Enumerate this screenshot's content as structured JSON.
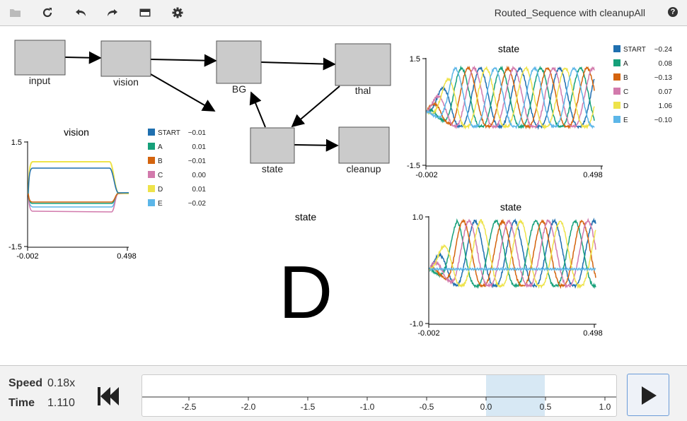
{
  "toolbar": {
    "title": "Routed_Sequence with cleanupAll",
    "icons": [
      "folder-icon",
      "refresh-icon",
      "undo-icon",
      "redo-icon",
      "minimap-icon",
      "gear-icon"
    ],
    "help": "?"
  },
  "network": {
    "nodes": [
      {
        "id": "input",
        "label": "input"
      },
      {
        "id": "vision",
        "label": "vision"
      },
      {
        "id": "bg",
        "label": "BG"
      },
      {
        "id": "thal",
        "label": "thal"
      },
      {
        "id": "state",
        "label": "state"
      },
      {
        "id": "cleanup",
        "label": "cleanup"
      }
    ]
  },
  "vision_plot": {
    "title": "vision",
    "ymax": "1.5",
    "ymin": "-1.5",
    "xmin": "-0.002",
    "xmax": "0.498",
    "legend": [
      {
        "name": "START",
        "value": "−0.01",
        "color": "#1f6faf"
      },
      {
        "name": "A",
        "value": "0.01",
        "color": "#16a07a"
      },
      {
        "name": "B",
        "value": "−0.01",
        "color": "#d4640e"
      },
      {
        "name": "C",
        "value": "0.00",
        "color": "#d27aac"
      },
      {
        "name": "D",
        "value": "0.01",
        "color": "#eee34a"
      },
      {
        "name": "E",
        "value": "−0.02",
        "color": "#5cb6e8"
      }
    ]
  },
  "state_text": {
    "title": "state",
    "value": "D"
  },
  "state_plot1": {
    "title": "state",
    "ymax": "1.5",
    "ymin": "-1.5",
    "xmin": "-0.002",
    "xmax": "0.498",
    "legend": [
      {
        "name": "START",
        "value": "−0.24",
        "color": "#1f6faf"
      },
      {
        "name": "A",
        "value": "0.08",
        "color": "#16a07a"
      },
      {
        "name": "B",
        "value": "−0.13",
        "color": "#d4640e"
      },
      {
        "name": "C",
        "value": "0.07",
        "color": "#d27aac"
      },
      {
        "name": "D",
        "value": "1.06",
        "color": "#eee34a"
      },
      {
        "name": "E",
        "value": "−0.10",
        "color": "#5cb6e8"
      }
    ]
  },
  "state_plot2": {
    "title": "state",
    "ymax": "1.0",
    "ymin": "-1.0",
    "xmin": "-0.002",
    "xmax": "0.498"
  },
  "controls": {
    "speed_label": "Speed",
    "speed_value": "0.18x",
    "time_label": "Time",
    "time_value": "1.110",
    "ticks": [
      "-2.5",
      "-2.0",
      "-1.5",
      "-1.0",
      "-0.5",
      "0.0",
      "0.5",
      "1.0"
    ]
  }
}
